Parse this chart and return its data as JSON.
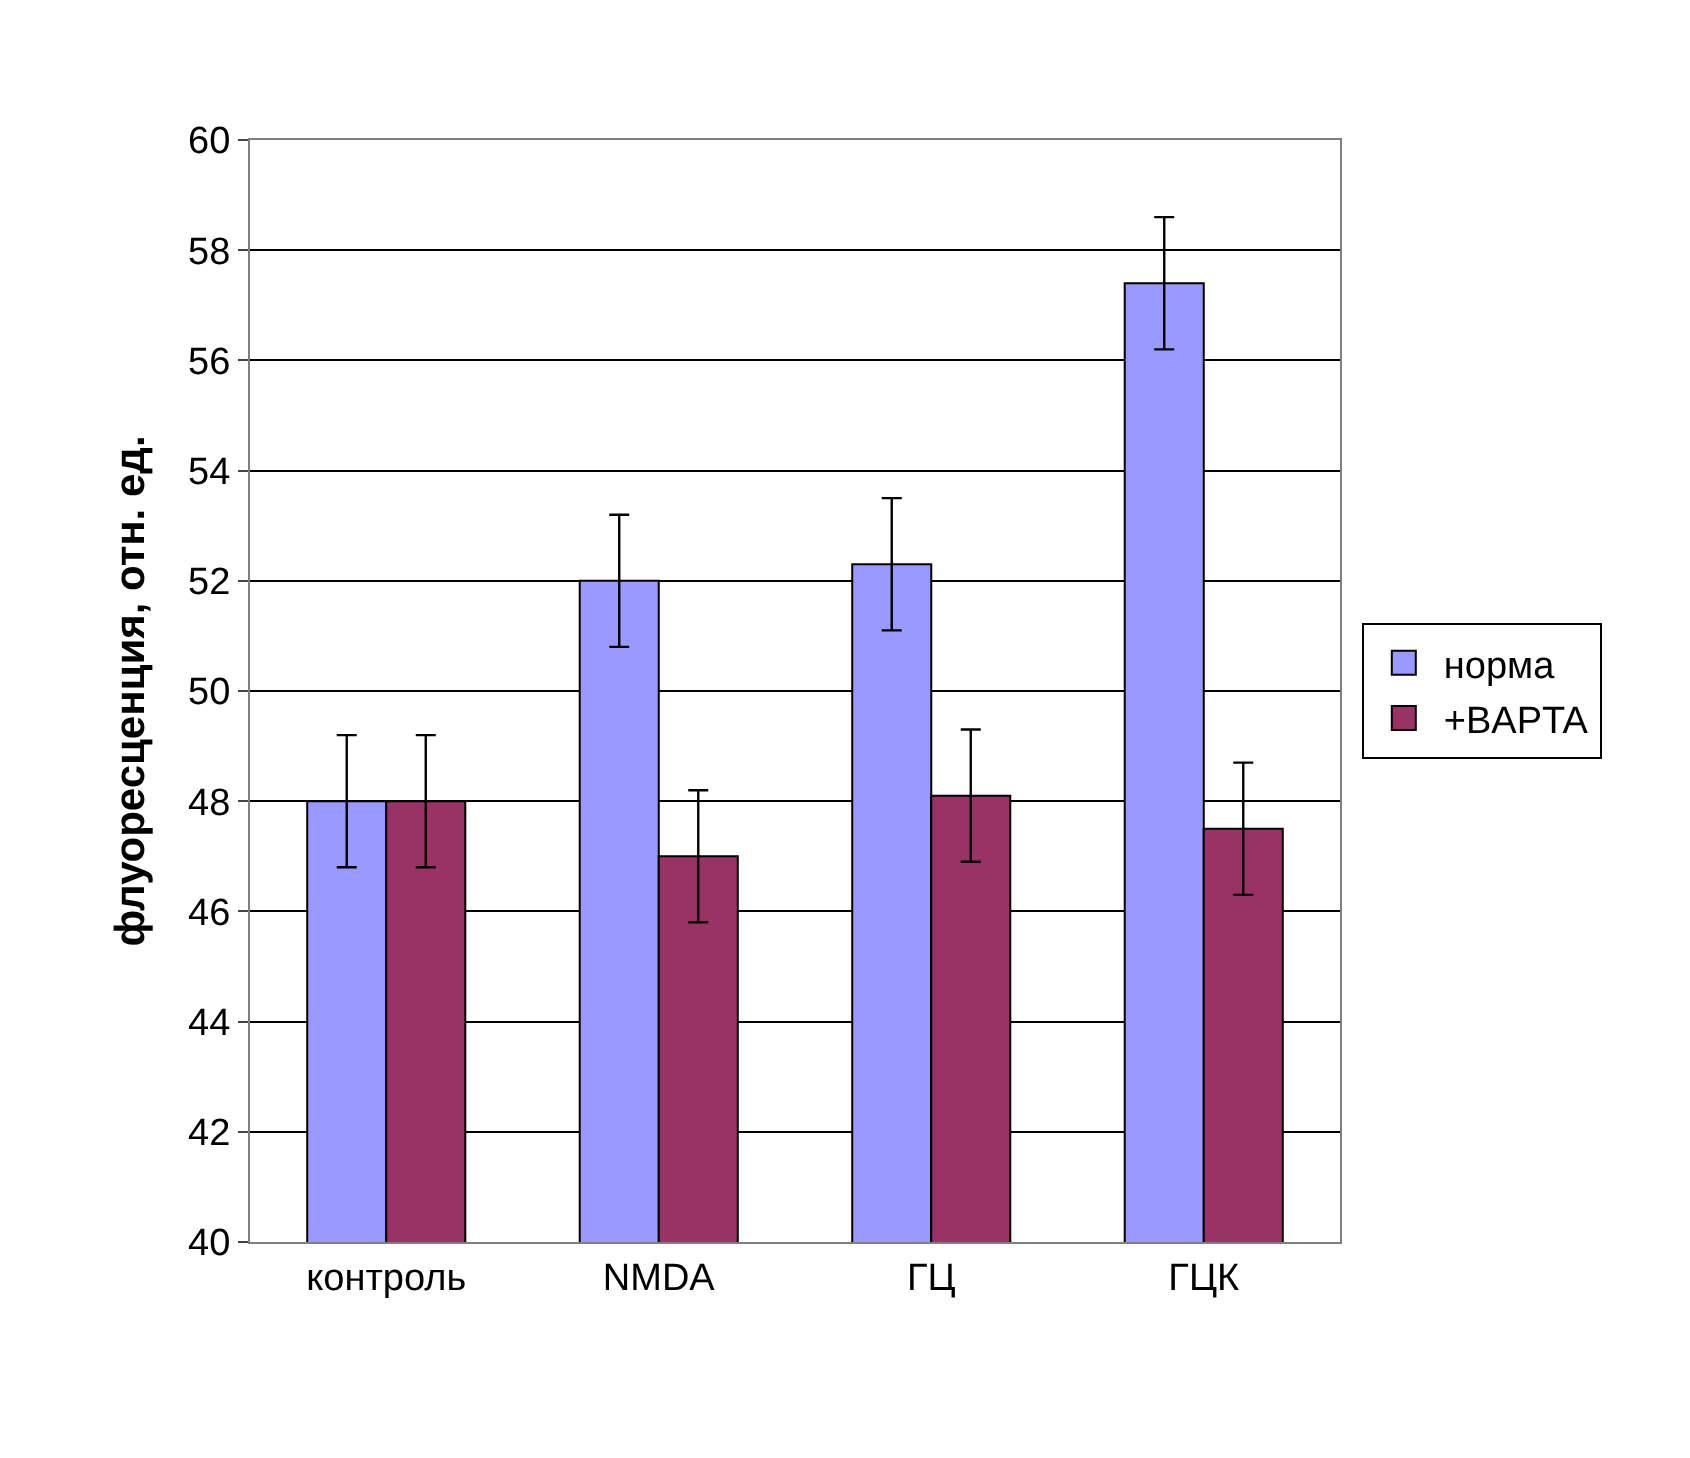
{
  "chart_data": {
    "type": "bar",
    "ylabel": "флуоресценция, отн. ед.",
    "categories": [
      "контроль",
      "NMDA",
      "ГЦ",
      "ГЦК"
    ],
    "series": [
      {
        "name": "норма",
        "color": "#9999ff",
        "values": [
          48.0,
          52.0,
          52.3,
          57.4
        ],
        "errors": [
          1.2,
          1.2,
          1.2,
          1.2
        ]
      },
      {
        "name": "+BAPTA",
        "color": "#993366",
        "values": [
          48.0,
          47.0,
          48.1,
          47.5
        ],
        "errors": [
          1.2,
          1.2,
          1.2,
          1.2
        ]
      }
    ],
    "ylim": [
      40,
      60
    ],
    "yticks": [
      40,
      42,
      44,
      46,
      48,
      50,
      52,
      54,
      56,
      58,
      60
    ],
    "grid": "y",
    "legend": "right"
  }
}
